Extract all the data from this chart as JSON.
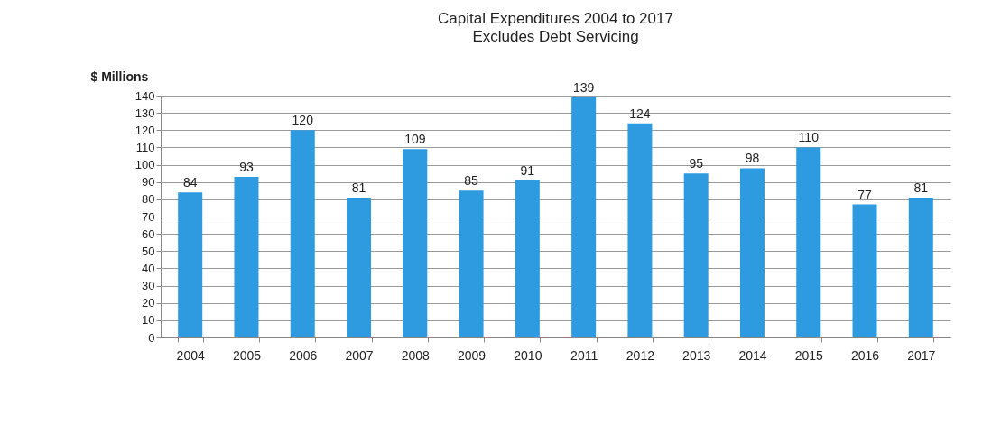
{
  "chart_data": {
    "type": "bar",
    "title": "Capital Expenditures 2004 to 2017",
    "subtitle": "Excludes Debt Servicing",
    "ylabel": "$ Millions",
    "categories": [
      "2004",
      "2005",
      "2006",
      "2007",
      "2008",
      "2009",
      "2010",
      "2011",
      "2012",
      "2013",
      "2014",
      "2015",
      "2016",
      "2017"
    ],
    "values": [
      84,
      93,
      120,
      81,
      109,
      85,
      91,
      139,
      124,
      95,
      98,
      110,
      77,
      81
    ],
    "color": "#2e9be0",
    "ylim": [
      0,
      140
    ],
    "yticks": [
      0,
      10,
      20,
      30,
      40,
      50,
      60,
      70,
      80,
      90,
      100,
      110,
      120,
      130,
      140
    ],
    "grid": "y",
    "data_labels": true
  }
}
